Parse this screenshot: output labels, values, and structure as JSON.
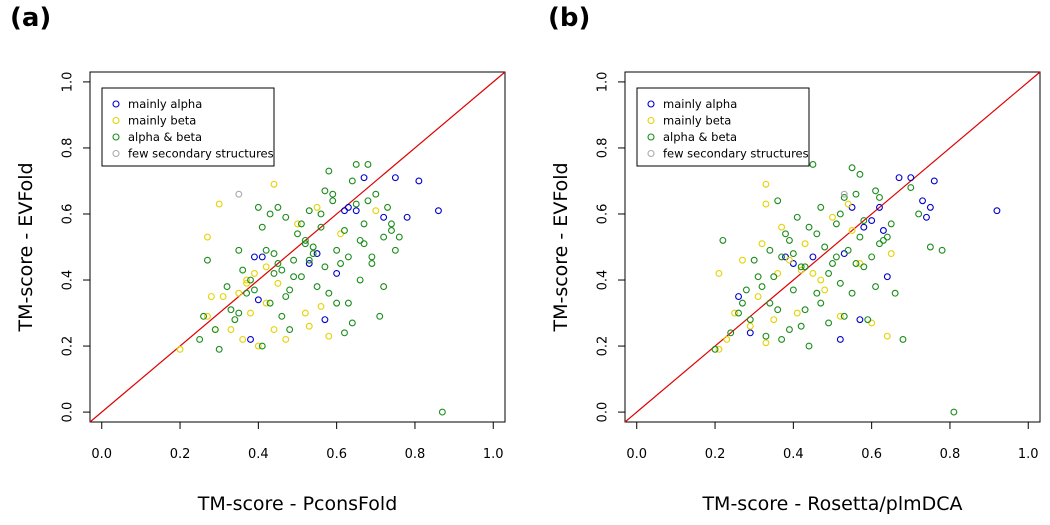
{
  "chart_data": [
    {
      "type": "scatter",
      "panel_label": "(a)",
      "xlabel": "TM-score - PconsFold",
      "ylabel": "TM-score - EVFold",
      "xlim": [
        -0.03,
        1.03
      ],
      "ylim": [
        -0.03,
        1.03
      ],
      "x_ticks": [
        "0.0",
        "0.2",
        "0.4",
        "0.6",
        "0.8",
        "1.0"
      ],
      "y_ticks": [
        "0.0",
        "0.2",
        "0.4",
        "0.6",
        "0.8",
        "1.0"
      ],
      "reference_line": "y = x",
      "legend_position": "top-left",
      "series": [
        {
          "name": "mainly alpha",
          "color": "#0000cc",
          "points": [
            [
              0.39,
              0.47
            ],
            [
              0.41,
              0.47
            ],
            [
              0.4,
              0.34
            ],
            [
              0.38,
              0.22
            ],
            [
              0.57,
              0.28
            ],
            [
              0.6,
              0.42
            ],
            [
              0.62,
              0.61
            ],
            [
              0.67,
              0.71
            ],
            [
              0.65,
              0.61
            ],
            [
              0.72,
              0.59
            ],
            [
              0.75,
              0.71
            ],
            [
              0.81,
              0.7
            ],
            [
              0.86,
              0.61
            ],
            [
              0.78,
              0.59
            ],
            [
              0.55,
              0.48
            ],
            [
              0.53,
              0.45
            ],
            [
              0.63,
              0.62
            ]
          ]
        },
        {
          "name": "mainly beta",
          "color": "#e6d200",
          "points": [
            [
              0.2,
              0.19
            ],
            [
              0.27,
              0.53
            ],
            [
              0.27,
              0.29
            ],
            [
              0.28,
              0.35
            ],
            [
              0.29,
              0.25
            ],
            [
              0.3,
              0.63
            ],
            [
              0.31,
              0.35
            ],
            [
              0.33,
              0.25
            ],
            [
              0.35,
              0.36
            ],
            [
              0.36,
              0.22
            ],
            [
              0.37,
              0.39
            ],
            [
              0.38,
              0.3
            ],
            [
              0.39,
              0.42
            ],
            [
              0.4,
              0.2
            ],
            [
              0.42,
              0.33
            ],
            [
              0.44,
              0.25
            ],
            [
              0.44,
              0.69
            ],
            [
              0.47,
              0.22
            ],
            [
              0.52,
              0.3
            ],
            [
              0.53,
              0.26
            ],
            [
              0.56,
              0.32
            ],
            [
              0.58,
              0.23
            ],
            [
              0.55,
              0.62
            ],
            [
              0.7,
              0.61
            ],
            [
              0.42,
              0.44
            ],
            [
              0.45,
              0.39
            ],
            [
              0.5,
              0.57
            ],
            [
              0.61,
              0.54
            ],
            [
              0.37,
              0.4
            ]
          ]
        },
        {
          "name": "alpha & beta",
          "color": "#1a8c1a",
          "points": [
            [
              0.25,
              0.22
            ],
            [
              0.26,
              0.29
            ],
            [
              0.27,
              0.46
            ],
            [
              0.29,
              0.25
            ],
            [
              0.3,
              0.19
            ],
            [
              0.32,
              0.38
            ],
            [
              0.34,
              0.28
            ],
            [
              0.35,
              0.3
            ],
            [
              0.36,
              0.43
            ],
            [
              0.37,
              0.36
            ],
            [
              0.38,
              0.4
            ],
            [
              0.39,
              0.37
            ],
            [
              0.4,
              0.62
            ],
            [
              0.41,
              0.2
            ],
            [
              0.42,
              0.49
            ],
            [
              0.43,
              0.6
            ],
            [
              0.44,
              0.48
            ],
            [
              0.45,
              0.45
            ],
            [
              0.46,
              0.29
            ],
            [
              0.47,
              0.35
            ],
            [
              0.48,
              0.25
            ],
            [
              0.49,
              0.41
            ],
            [
              0.5,
              0.54
            ],
            [
              0.51,
              0.57
            ],
            [
              0.52,
              0.51
            ],
            [
              0.53,
              0.46
            ],
            [
              0.54,
              0.5
            ],
            [
              0.55,
              0.38
            ],
            [
              0.56,
              0.6
            ],
            [
              0.57,
              0.67
            ],
            [
              0.58,
              0.73
            ],
            [
              0.59,
              0.64
            ],
            [
              0.6,
              0.49
            ],
            [
              0.61,
              0.45
            ],
            [
              0.62,
              0.55
            ],
            [
              0.63,
              0.47
            ],
            [
              0.64,
              0.7
            ],
            [
              0.65,
              0.75
            ],
            [
              0.66,
              0.52
            ],
            [
              0.67,
              0.57
            ],
            [
              0.68,
              0.75
            ],
            [
              0.69,
              0.47
            ],
            [
              0.7,
              0.66
            ],
            [
              0.71,
              0.29
            ],
            [
              0.72,
              0.38
            ],
            [
              0.73,
              0.62
            ],
            [
              0.74,
              0.57
            ],
            [
              0.75,
              0.49
            ],
            [
              0.76,
              0.53
            ],
            [
              0.58,
              0.36
            ],
            [
              0.6,
              0.33
            ],
            [
              0.62,
              0.24
            ],
            [
              0.64,
              0.27
            ],
            [
              0.66,
              0.4
            ],
            [
              0.67,
              0.51
            ],
            [
              0.69,
              0.45
            ],
            [
              0.33,
              0.31
            ],
            [
              0.44,
              0.42
            ],
            [
              0.46,
              0.43
            ],
            [
              0.48,
              0.37
            ],
            [
              0.52,
              0.52
            ],
            [
              0.54,
              0.48
            ],
            [
              0.56,
              0.56
            ],
            [
              0.87,
              0.0
            ],
            [
              0.35,
              0.49
            ],
            [
              0.41,
              0.56
            ],
            [
              0.47,
              0.59
            ],
            [
              0.51,
              0.41
            ],
            [
              0.57,
              0.44
            ],
            [
              0.63,
              0.33
            ],
            [
              0.68,
              0.64
            ],
            [
              0.74,
              0.55
            ],
            [
              0.43,
              0.33
            ],
            [
              0.49,
              0.46
            ],
            [
              0.53,
              0.61
            ],
            [
              0.59,
              0.66
            ],
            [
              0.65,
              0.63
            ],
            [
              0.45,
              0.62
            ],
            [
              0.72,
              0.53
            ]
          ]
        },
        {
          "name": "few secondary structures",
          "color": "#aaaaaa",
          "points": [
            [
              0.35,
              0.66
            ]
          ]
        }
      ]
    },
    {
      "type": "scatter",
      "panel_label": "(b)",
      "xlabel": "TM-score - Rosetta/plmDCA",
      "ylabel": "TM-score - EVFold",
      "xlim": [
        -0.03,
        1.03
      ],
      "ylim": [
        -0.03,
        1.03
      ],
      "x_ticks": [
        "0.0",
        "0.2",
        "0.4",
        "0.6",
        "0.8",
        "1.0"
      ],
      "y_ticks": [
        "0.0",
        "0.2",
        "0.4",
        "0.6",
        "0.8",
        "1.0"
      ],
      "reference_line": "y = x",
      "legend_position": "top-left",
      "series": [
        {
          "name": "mainly alpha",
          "color": "#0000cc",
          "points": [
            [
              0.26,
              0.35
            ],
            [
              0.29,
              0.24
            ],
            [
              0.38,
              0.47
            ],
            [
              0.4,
              0.45
            ],
            [
              0.45,
              0.47
            ],
            [
              0.52,
              0.22
            ],
            [
              0.53,
              0.48
            ],
            [
              0.55,
              0.62
            ],
            [
              0.57,
              0.28
            ],
            [
              0.58,
              0.56
            ],
            [
              0.62,
              0.62
            ],
            [
              0.64,
              0.41
            ],
            [
              0.67,
              0.71
            ],
            [
              0.7,
              0.71
            ],
            [
              0.73,
              0.64
            ],
            [
              0.74,
              0.59
            ],
            [
              0.75,
              0.62
            ],
            [
              0.76,
              0.7
            ],
            [
              0.92,
              0.61
            ],
            [
              0.63,
              0.55
            ],
            [
              0.6,
              0.58
            ]
          ]
        },
        {
          "name": "mainly beta",
          "color": "#e6d200",
          "points": [
            [
              0.21,
              0.42
            ],
            [
              0.21,
              0.19
            ],
            [
              0.23,
              0.22
            ],
            [
              0.25,
              0.3
            ],
            [
              0.27,
              0.46
            ],
            [
              0.29,
              0.26
            ],
            [
              0.31,
              0.35
            ],
            [
              0.32,
              0.51
            ],
            [
              0.33,
              0.69
            ],
            [
              0.33,
              0.21
            ],
            [
              0.35,
              0.28
            ],
            [
              0.36,
              0.42
            ],
            [
              0.37,
              0.56
            ],
            [
              0.39,
              0.46
            ],
            [
              0.41,
              0.3
            ],
            [
              0.43,
              0.51
            ],
            [
              0.45,
              0.42
            ],
            [
              0.47,
              0.4
            ],
            [
              0.5,
              0.59
            ],
            [
              0.52,
              0.29
            ],
            [
              0.54,
              0.63
            ],
            [
              0.57,
              0.45
            ],
            [
              0.6,
              0.27
            ],
            [
              0.64,
              0.23
            ],
            [
              0.65,
              0.48
            ],
            [
              0.33,
              0.63
            ],
            [
              0.48,
              0.37
            ],
            [
              0.55,
              0.55
            ],
            [
              0.42,
              0.43
            ]
          ]
        },
        {
          "name": "alpha & beta",
          "color": "#1a8c1a",
          "points": [
            [
              0.2,
              0.19
            ],
            [
              0.22,
              0.52
            ],
            [
              0.24,
              0.24
            ],
            [
              0.26,
              0.3
            ],
            [
              0.28,
              0.37
            ],
            [
              0.3,
              0.46
            ],
            [
              0.32,
              0.38
            ],
            [
              0.34,
              0.33
            ],
            [
              0.35,
              0.41
            ],
            [
              0.36,
              0.64
            ],
            [
              0.37,
              0.47
            ],
            [
              0.38,
              0.54
            ],
            [
              0.39,
              0.25
            ],
            [
              0.4,
              0.48
            ],
            [
              0.41,
              0.59
            ],
            [
              0.42,
              0.44
            ],
            [
              0.43,
              0.31
            ],
            [
              0.44,
              0.2
            ],
            [
              0.45,
              0.75
            ],
            [
              0.46,
              0.36
            ],
            [
              0.47,
              0.62
            ],
            [
              0.48,
              0.5
            ],
            [
              0.49,
              0.27
            ],
            [
              0.5,
              0.45
            ],
            [
              0.51,
              0.57
            ],
            [
              0.52,
              0.39
            ],
            [
              0.53,
              0.29
            ],
            [
              0.54,
              0.49
            ],
            [
              0.55,
              0.74
            ],
            [
              0.56,
              0.66
            ],
            [
              0.57,
              0.53
            ],
            [
              0.58,
              0.58
            ],
            [
              0.59,
              0.28
            ],
            [
              0.6,
              0.47
            ],
            [
              0.61,
              0.67
            ],
            [
              0.62,
              0.51
            ],
            [
              0.63,
              0.52
            ],
            [
              0.64,
              0.53
            ],
            [
              0.65,
              0.57
            ],
            [
              0.66,
              0.36
            ],
            [
              0.68,
              0.22
            ],
            [
              0.7,
              0.68
            ],
            [
              0.72,
              0.6
            ],
            [
              0.75,
              0.5
            ],
            [
              0.78,
              0.49
            ],
            [
              0.81,
              0.0
            ],
            [
              0.31,
              0.41
            ],
            [
              0.34,
              0.49
            ],
            [
              0.37,
              0.22
            ],
            [
              0.4,
              0.37
            ],
            [
              0.43,
              0.44
            ],
            [
              0.46,
              0.54
            ],
            [
              0.49,
              0.42
            ],
            [
              0.52,
              0.6
            ],
            [
              0.55,
              0.36
            ],
            [
              0.58,
              0.44
            ],
            [
              0.61,
              0.38
            ],
            [
              0.27,
              0.33
            ],
            [
              0.29,
              0.28
            ],
            [
              0.33,
              0.23
            ],
            [
              0.39,
              0.52
            ],
            [
              0.42,
              0.26
            ],
            [
              0.47,
              0.33
            ],
            [
              0.51,
              0.47
            ],
            [
              0.56,
              0.45
            ],
            [
              0.62,
              0.65
            ],
            [
              0.44,
              0.56
            ],
            [
              0.53,
              0.65
            ],
            [
              0.57,
              0.72
            ],
            [
              0.36,
              0.31
            ]
          ]
        },
        {
          "name": "few secondary structures",
          "color": "#aaaaaa",
          "points": [
            [
              0.53,
              0.66
            ]
          ]
        }
      ]
    }
  ]
}
